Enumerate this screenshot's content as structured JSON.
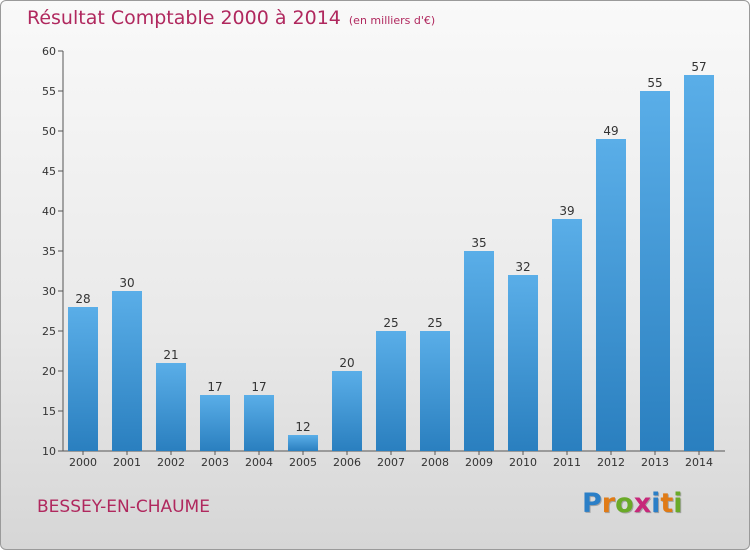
{
  "title": "Résultat Comptable 2000 à 2014",
  "unit": "(en milliers d'€)",
  "commune": "BESSEY-EN-CHAUME",
  "logo": {
    "letters": [
      "P",
      "r",
      "o",
      "x",
      "i",
      "t",
      "i"
    ],
    "colors": [
      "#2b7fc7",
      "#e07b16",
      "#6aaa28",
      "#c7287a",
      "#2b7fc7",
      "#e07b16",
      "#6aaa28"
    ]
  },
  "colors": {
    "bar_light": "#5aaee8",
    "bar_dark": "#2a7fbf",
    "title": "#b0285e"
  },
  "chart_data": {
    "type": "bar",
    "title": "Résultat Comptable 2000 à 2014",
    "xlabel": "",
    "ylabel": "",
    "categories": [
      "2000",
      "2001",
      "2002",
      "2003",
      "2004",
      "2005",
      "2006",
      "2007",
      "2008",
      "2009",
      "2010",
      "2011",
      "2012",
      "2013",
      "2014"
    ],
    "values": [
      28,
      30,
      21,
      17,
      17,
      12,
      20,
      25,
      25,
      35,
      32,
      39,
      49,
      55,
      57
    ],
    "ylim": [
      10,
      60
    ],
    "yticks": [
      10,
      15,
      20,
      25,
      30,
      35,
      40,
      45,
      50,
      55,
      60
    ],
    "grid": false,
    "data_labels": true
  }
}
